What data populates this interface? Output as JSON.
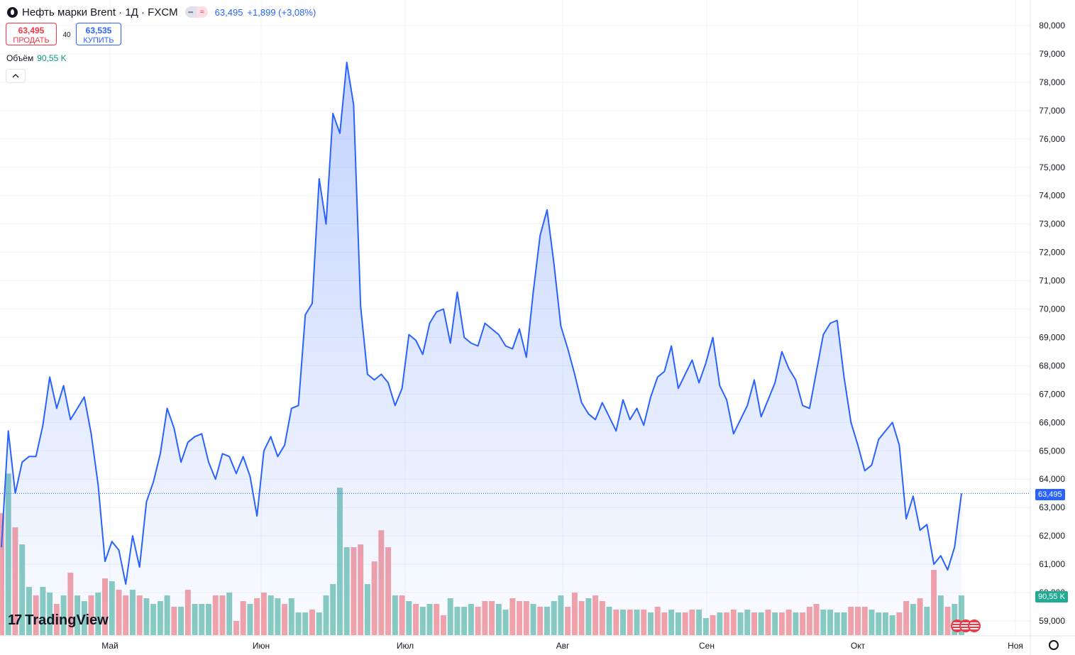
{
  "header": {
    "title": "Нефть марки Brent · 1Д · FXCM",
    "price": "63,495",
    "change": "+1,899 (+3,08%)",
    "pill_a": "━",
    "pill_b": "≈"
  },
  "trade": {
    "sell_price": "63,495",
    "sell_label": "ПРОДАТЬ",
    "spread": "40",
    "buy_price": "63,535",
    "buy_label": "КУПИТЬ"
  },
  "volume_legend": {
    "label": "Объём",
    "value": "90,55 K"
  },
  "collapse_icon": "chevron-up-icon",
  "brand": {
    "logo_text": "TradingView",
    "logo_mark": "17"
  },
  "price_label": "63,495",
  "volume_label": "90,55 K",
  "colors": {
    "line": "#2962ff",
    "up_volume": "#89ccc1",
    "down_volume": "#f4a3a8",
    "grid": "#f0f3fa"
  },
  "chart_data": {
    "type": "area",
    "y_ticks": [
      59000,
      60000,
      61000,
      62000,
      63000,
      64000,
      65000,
      66000,
      67000,
      68000,
      69000,
      70000,
      71000,
      72000,
      73000,
      74000,
      75000,
      76000,
      77000,
      78000,
      79000,
      80000
    ],
    "y_tick_labels": [
      "59,000",
      "60,000",
      "61,000",
      "62,000",
      "63,000",
      "64,000",
      "65,000",
      "66,000",
      "67,000",
      "68,000",
      "69,000",
      "70,000",
      "71,000",
      "72,000",
      "73,000",
      "74,000",
      "75,000",
      "76,000",
      "77,000",
      "78,000",
      "79,000",
      "80,000"
    ],
    "ylim": [
      58700,
      80300
    ],
    "x_labels": [
      "Май",
      "Июн",
      "Июл",
      "Авг",
      "Сен",
      "Окт",
      "Ноя"
    ],
    "last_price": 63495,
    "series": [
      {
        "values": [
          61600,
          65700,
          63500,
          64600,
          64800,
          64800,
          65900,
          67600,
          66500,
          67300,
          66100,
          66500,
          66900,
          65600,
          63800,
          61100,
          61800,
          61500,
          60300,
          62000,
          60900,
          63200,
          63900,
          64900,
          66500,
          65800,
          64600,
          65300,
          65500,
          65600,
          64600,
          64000,
          64900,
          64800,
          64200,
          64800,
          64100,
          62700,
          65000,
          65500,
          64800,
          65200,
          66500,
          66600,
          69800,
          70200,
          74600,
          73000,
          76900,
          76200,
          78700,
          77200,
          70100,
          67700,
          67500,
          67700,
          67400,
          66600,
          67200,
          69100,
          68900,
          68400,
          69500,
          69900,
          70000,
          68800,
          70600,
          69000,
          68800,
          68700,
          69500,
          69300,
          69100,
          68700,
          68600,
          69300,
          68300,
          70600,
          72600,
          73500,
          71600,
          69400,
          68600,
          67700,
          66700,
          66300,
          66100,
          66700,
          66200,
          65700,
          66800,
          66100,
          66500,
          65900,
          66900,
          67600,
          67800,
          68700,
          67200,
          67700,
          68200,
          67400,
          68100,
          69000,
          67300,
          66800,
          65600,
          66100,
          66600,
          67500,
          66200,
          66800,
          67400,
          68500,
          67900,
          67500,
          66600,
          66500,
          67800,
          69100,
          69500,
          69600,
          67600,
          66000,
          65200,
          64300,
          64500,
          65400,
          65700,
          66000,
          65200,
          62600,
          63400,
          62200,
          62400,
          61000,
          61300,
          60800,
          61600,
          63495
        ]
      }
    ],
    "volume": [
      {
        "v": 62800,
        "up": false
      },
      {
        "v": 64200,
        "up": true
      },
      {
        "v": 62300,
        "up": false
      },
      {
        "v": 61700,
        "up": true
      },
      {
        "v": 60200,
        "up": true
      },
      {
        "v": 59900,
        "up": false
      },
      {
        "v": 60200,
        "up": true
      },
      {
        "v": 60000,
        "up": true
      },
      {
        "v": 59600,
        "up": false
      },
      {
        "v": 59900,
        "up": true
      },
      {
        "v": 60700,
        "up": false
      },
      {
        "v": 59900,
        "up": true
      },
      {
        "v": 59700,
        "up": true
      },
      {
        "v": 59900,
        "up": false
      },
      {
        "v": 60000,
        "up": true
      },
      {
        "v": 60500,
        "up": false
      },
      {
        "v": 60400,
        "up": true
      },
      {
        "v": 60100,
        "up": false
      },
      {
        "v": 59900,
        "up": false
      },
      {
        "v": 60100,
        "up": true
      },
      {
        "v": 59900,
        "up": false
      },
      {
        "v": 59800,
        "up": true
      },
      {
        "v": 59600,
        "up": true
      },
      {
        "v": 59700,
        "up": true
      },
      {
        "v": 59900,
        "up": true
      },
      {
        "v": 59500,
        "up": false
      },
      {
        "v": 59500,
        "up": true
      },
      {
        "v": 60100,
        "up": false
      },
      {
        "v": 59600,
        "up": true
      },
      {
        "v": 59600,
        "up": true
      },
      {
        "v": 59600,
        "up": true
      },
      {
        "v": 59900,
        "up": false
      },
      {
        "v": 59900,
        "up": false
      },
      {
        "v": 60000,
        "up": true
      },
      {
        "v": 59000,
        "up": false
      },
      {
        "v": 59700,
        "up": false
      },
      {
        "v": 59600,
        "up": true
      },
      {
        "v": 59800,
        "up": false
      },
      {
        "v": 60000,
        "up": false
      },
      {
        "v": 59900,
        "up": true
      },
      {
        "v": 59800,
        "up": true
      },
      {
        "v": 59600,
        "up": false
      },
      {
        "v": 59800,
        "up": true
      },
      {
        "v": 59300,
        "up": true
      },
      {
        "v": 59300,
        "up": true
      },
      {
        "v": 59400,
        "up": false
      },
      {
        "v": 59300,
        "up": true
      },
      {
        "v": 59900,
        "up": true
      },
      {
        "v": 60300,
        "up": true
      },
      {
        "v": 63700,
        "up": true
      },
      {
        "v": 61600,
        "up": true
      },
      {
        "v": 61600,
        "up": false
      },
      {
        "v": 61700,
        "up": false
      },
      {
        "v": 60300,
        "up": true
      },
      {
        "v": 61100,
        "up": false
      },
      {
        "v": 62200,
        "up": false
      },
      {
        "v": 61600,
        "up": false
      },
      {
        "v": 59900,
        "up": true
      },
      {
        "v": 59900,
        "up": false
      },
      {
        "v": 59700,
        "up": true
      },
      {
        "v": 59600,
        "up": false
      },
      {
        "v": 59500,
        "up": true
      },
      {
        "v": 59600,
        "up": true
      },
      {
        "v": 59600,
        "up": false
      },
      {
        "v": 59200,
        "up": false
      },
      {
        "v": 59800,
        "up": true
      },
      {
        "v": 59500,
        "up": true
      },
      {
        "v": 59500,
        "up": true
      },
      {
        "v": 59600,
        "up": true
      },
      {
        "v": 59500,
        "up": false
      },
      {
        "v": 59700,
        "up": false
      },
      {
        "v": 59700,
        "up": false
      },
      {
        "v": 59600,
        "up": true
      },
      {
        "v": 59400,
        "up": true
      },
      {
        "v": 59800,
        "up": false
      },
      {
        "v": 59700,
        "up": false
      },
      {
        "v": 59700,
        "up": false
      },
      {
        "v": 59600,
        "up": true
      },
      {
        "v": 59500,
        "up": false
      },
      {
        "v": 59500,
        "up": true
      },
      {
        "v": 59700,
        "up": true
      },
      {
        "v": 59900,
        "up": true
      },
      {
        "v": 59500,
        "up": false
      },
      {
        "v": 60000,
        "up": false
      },
      {
        "v": 59700,
        "up": false
      },
      {
        "v": 59800,
        "up": true
      },
      {
        "v": 59900,
        "up": false
      },
      {
        "v": 59700,
        "up": false
      },
      {
        "v": 59500,
        "up": true
      },
      {
        "v": 59400,
        "up": false
      },
      {
        "v": 59400,
        "up": true
      },
      {
        "v": 59400,
        "up": false
      },
      {
        "v": 59400,
        "up": true
      },
      {
        "v": 59400,
        "up": false
      },
      {
        "v": 59300,
        "up": true
      },
      {
        "v": 59500,
        "up": false
      },
      {
        "v": 59300,
        "up": false
      },
      {
        "v": 59400,
        "up": true
      },
      {
        "v": 59300,
        "up": true
      },
      {
        "v": 59300,
        "up": false
      },
      {
        "v": 59400,
        "up": false
      },
      {
        "v": 59400,
        "up": true
      },
      {
        "v": 59100,
        "up": true
      },
      {
        "v": 59200,
        "up": false
      },
      {
        "v": 59300,
        "up": true
      },
      {
        "v": 59300,
        "up": false
      },
      {
        "v": 59400,
        "up": false
      },
      {
        "v": 59300,
        "up": true
      },
      {
        "v": 59400,
        "up": true
      },
      {
        "v": 59300,
        "up": false
      },
      {
        "v": 59300,
        "up": true
      },
      {
        "v": 59400,
        "up": false
      },
      {
        "v": 59300,
        "up": true
      },
      {
        "v": 59300,
        "up": false
      },
      {
        "v": 59400,
        "up": false
      },
      {
        "v": 59300,
        "up": true
      },
      {
        "v": 59300,
        "up": false
      },
      {
        "v": 59500,
        "up": false
      },
      {
        "v": 59600,
        "up": false
      },
      {
        "v": 59400,
        "up": true
      },
      {
        "v": 59400,
        "up": true
      },
      {
        "v": 59300,
        "up": true
      },
      {
        "v": 59300,
        "up": true
      },
      {
        "v": 59500,
        "up": false
      },
      {
        "v": 59500,
        "up": false
      },
      {
        "v": 59500,
        "up": false
      },
      {
        "v": 59400,
        "up": true
      },
      {
        "v": 59300,
        "up": true
      },
      {
        "v": 59300,
        "up": true
      },
      {
        "v": 59200,
        "up": true
      },
      {
        "v": 59300,
        "up": false
      },
      {
        "v": 59700,
        "up": false
      },
      {
        "v": 59600,
        "up": true
      },
      {
        "v": 59800,
        "up": false
      },
      {
        "v": 59500,
        "up": true
      },
      {
        "v": 60800,
        "up": false
      },
      {
        "v": 59900,
        "up": true
      },
      {
        "v": 59500,
        "up": false
      },
      {
        "v": 59600,
        "up": true
      },
      {
        "v": 59900,
        "up": true
      }
    ],
    "volume_axis": {
      "min": 58100,
      "max": 64400
    }
  }
}
